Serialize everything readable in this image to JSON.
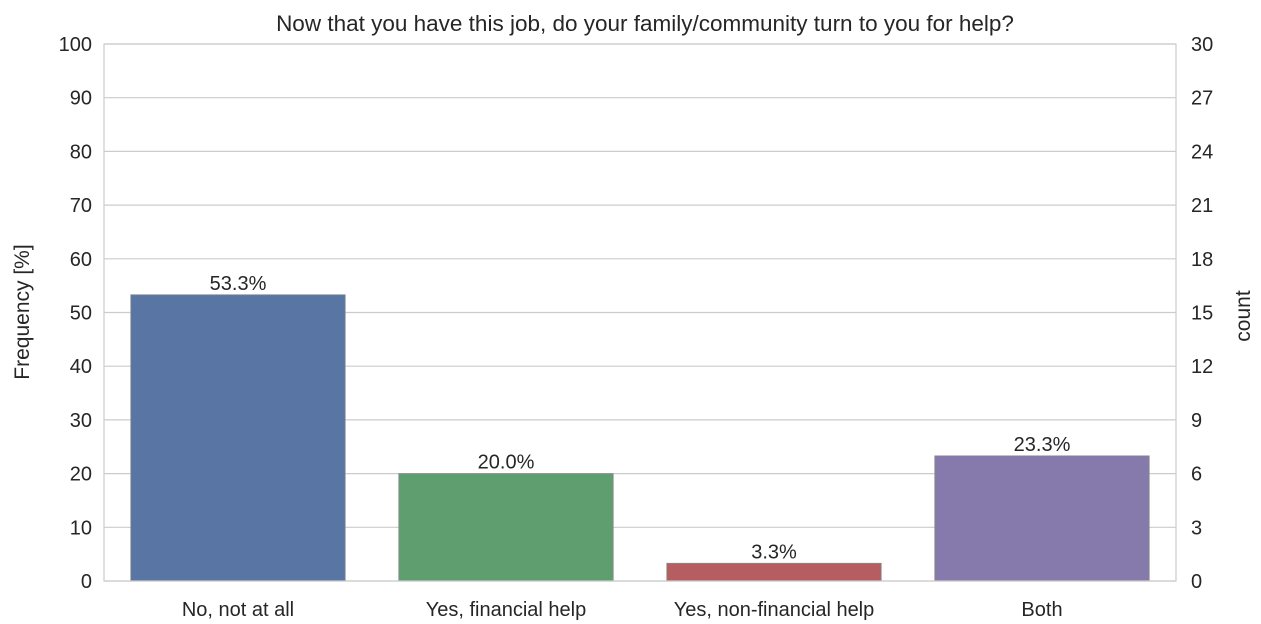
{
  "chart_data": {
    "type": "bar",
    "title": "Now that you have this job, do your family/community turn to you for help?",
    "xlabel": "",
    "ylabel": "Frequency [%]",
    "y2label": "count",
    "categories": [
      "No, not at all",
      "Yes, financial help",
      "Yes, non-financial help",
      "Both"
    ],
    "values": [
      53.3,
      20.0,
      3.3,
      23.3
    ],
    "data_labels": [
      "53.3%",
      "20.0%",
      "3.3%",
      "23.3%"
    ],
    "colors": [
      "#5975a4",
      "#5f9e6e",
      "#b55d60",
      "#857aab"
    ],
    "ylim": [
      0,
      100
    ],
    "yticks": [
      "0",
      "10",
      "20",
      "30",
      "40",
      "50",
      "60",
      "70",
      "80",
      "90",
      "100"
    ],
    "y2lim": [
      0,
      30
    ],
    "y2ticks": [
      "0",
      "3",
      "6",
      "9",
      "12",
      "15",
      "18",
      "21",
      "24",
      "27",
      "30"
    ],
    "grid": true,
    "legend": "none"
  }
}
